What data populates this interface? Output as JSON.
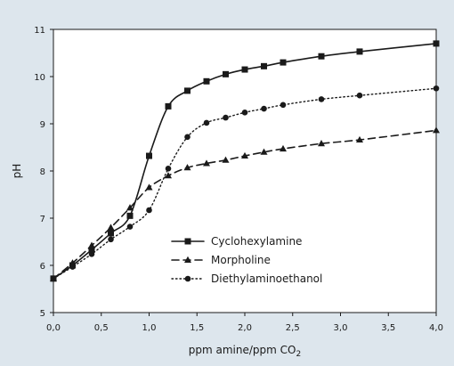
{
  "chart_data": {
    "type": "line",
    "title": "",
    "xlabel": "ppm amine/ppm CO",
    "xlabel_subscript": "2",
    "ylabel": "pH",
    "xlim": [
      0,
      4
    ],
    "ylim": [
      5,
      11
    ],
    "x_ticks": [
      "0,0",
      "0,5",
      "1,0",
      "1,5",
      "2,0",
      "2,5",
      "3,0",
      "3,5",
      "4,0"
    ],
    "y_ticks": [
      "5",
      "6",
      "7",
      "8",
      "9",
      "10",
      "11"
    ],
    "grid": false,
    "legend_position": "lower-right",
    "series": [
      {
        "name": "Cyclohexylamine",
        "marker": "square",
        "line_style": "solid",
        "x": [
          0,
          0.2,
          0.4,
          0.6,
          0.8,
          1.0,
          1.2,
          1.4,
          1.6,
          1.8,
          2.0,
          2.2,
          2.4,
          2.8,
          3.2,
          4.0
        ],
        "y": [
          5.72,
          6.0,
          6.33,
          6.68,
          7.05,
          8.32,
          9.37,
          9.7,
          9.9,
          10.05,
          10.15,
          10.22,
          10.3,
          10.43,
          10.53,
          10.7
        ]
      },
      {
        "name": "Morpholine",
        "marker": "triangle",
        "line_style": "dashed",
        "x": [
          0,
          0.2,
          0.4,
          0.6,
          0.8,
          1.0,
          1.2,
          1.4,
          1.6,
          1.8,
          2.0,
          2.2,
          2.4,
          2.8,
          3.2,
          4.0
        ],
        "y": [
          5.72,
          6.05,
          6.42,
          6.8,
          7.22,
          7.65,
          7.9,
          8.07,
          8.16,
          8.23,
          8.32,
          8.4,
          8.47,
          8.58,
          8.66,
          8.86
        ]
      },
      {
        "name": "Diethylaminoethanol",
        "marker": "circle",
        "line_style": "dotted",
        "x": [
          0,
          0.2,
          0.4,
          0.6,
          0.8,
          1.0,
          1.2,
          1.4,
          1.6,
          1.8,
          2.0,
          2.2,
          2.4,
          2.8,
          3.2,
          4.0
        ],
        "y": [
          5.72,
          5.97,
          6.24,
          6.55,
          6.82,
          7.17,
          8.05,
          8.72,
          9.02,
          9.13,
          9.24,
          9.32,
          9.4,
          9.52,
          9.6,
          9.75
        ]
      }
    ]
  }
}
